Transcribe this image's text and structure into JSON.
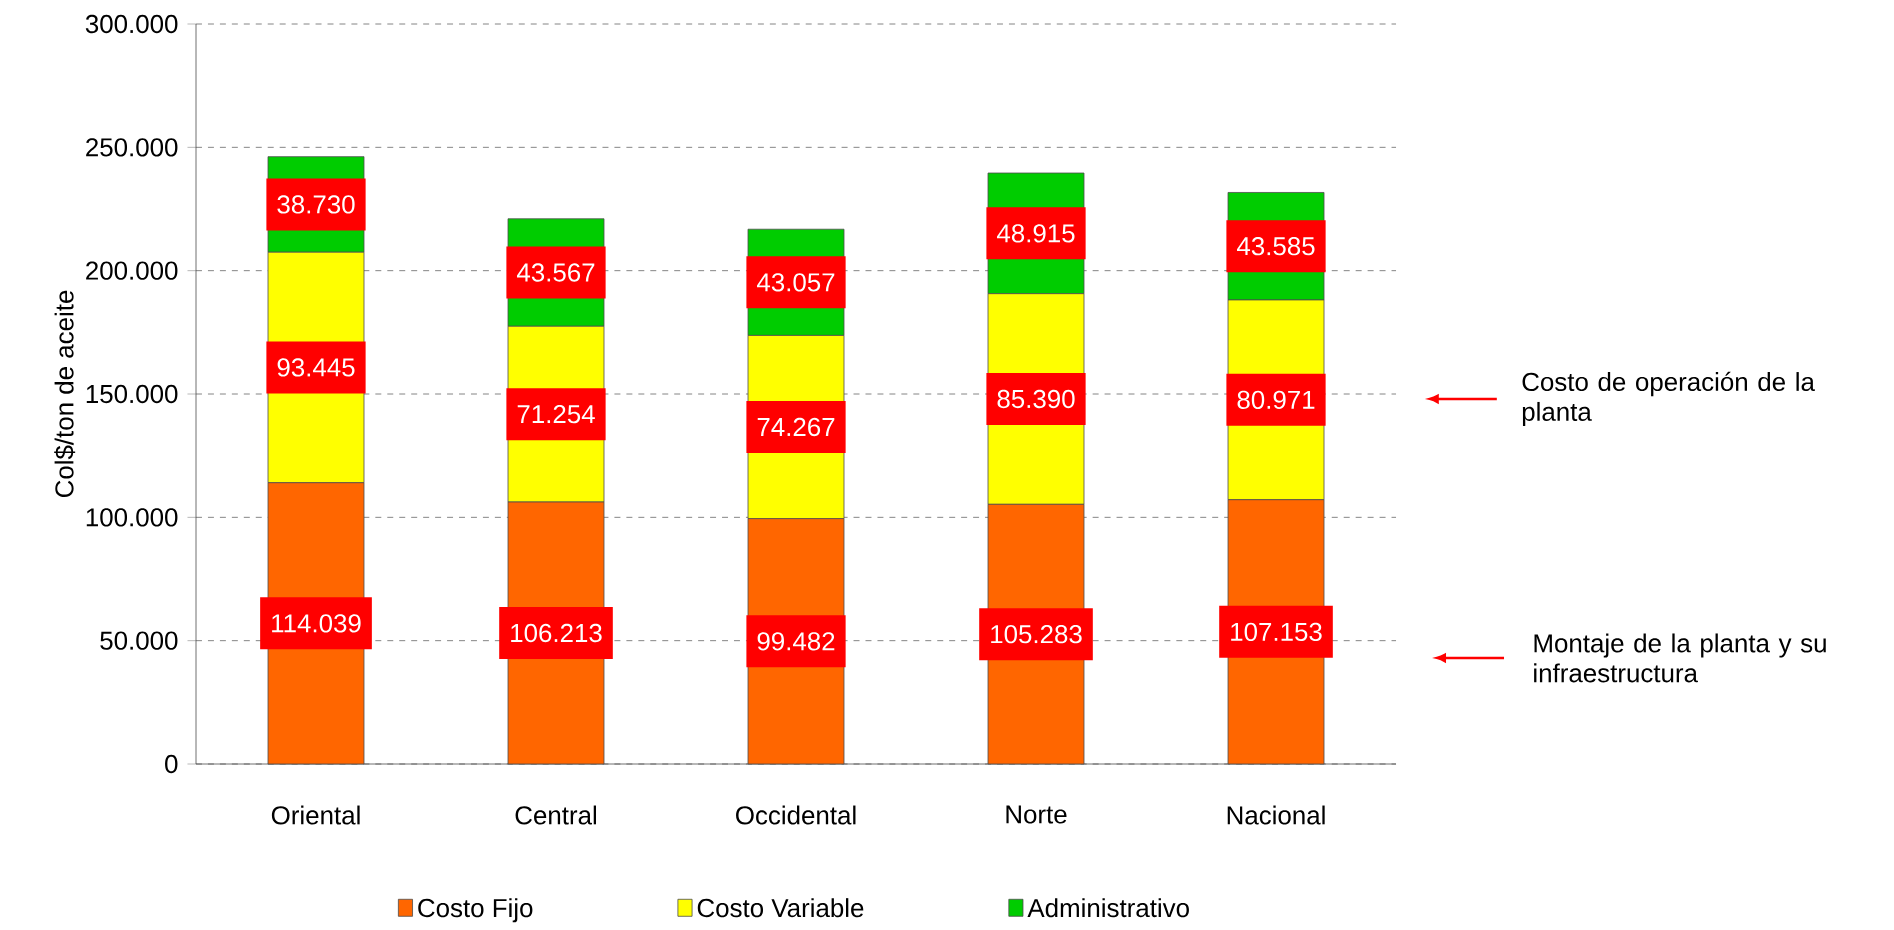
{
  "chart_data": {
    "type": "bar",
    "stacked": true,
    "ylabel": "Col$/ton de aceite",
    "categories": [
      "Oriental",
      "Central",
      "Occidental",
      "Norte",
      "Nacional"
    ],
    "series": [
      {
        "name": "Costo Fijo",
        "color": "#ff6600",
        "values": [
          114039,
          106213,
          99482,
          105283,
          107153
        ],
        "value_labels": [
          "114.039",
          "106.213",
          "99.482",
          "105.283",
          "107.153"
        ]
      },
      {
        "name": "Costo Variable",
        "color": "#ffff00",
        "values": [
          93445,
          71254,
          74267,
          85390,
          80971
        ],
        "value_labels": [
          "93.445",
          "71.254",
          "74.267",
          "85.390",
          "80.971"
        ]
      },
      {
        "name": "Administrativo",
        "color": "#00cc00",
        "values": [
          38730,
          43567,
          43057,
          48915,
          43585
        ],
        "value_labels": [
          "38.730",
          "43.567",
          "43.057",
          "48.915",
          "43.585"
        ]
      }
    ],
    "ylim": [
      0,
      300000
    ],
    "yticks": [
      {
        "value": 0,
        "label": "0"
      },
      {
        "value": 50000,
        "label": "50.000"
      },
      {
        "value": 100000,
        "label": "100.000"
      },
      {
        "value": 150000,
        "label": "150.000"
      },
      {
        "value": 200000,
        "label": "200.000"
      },
      {
        "value": 250000,
        "label": "250.000"
      },
      {
        "value": 300000,
        "label": "300.000"
      }
    ],
    "grid": "y",
    "legend": "bottom",
    "annotations": [
      "Costo de operación de la planta",
      "Montaje de la planta y su infraestructura"
    ]
  }
}
